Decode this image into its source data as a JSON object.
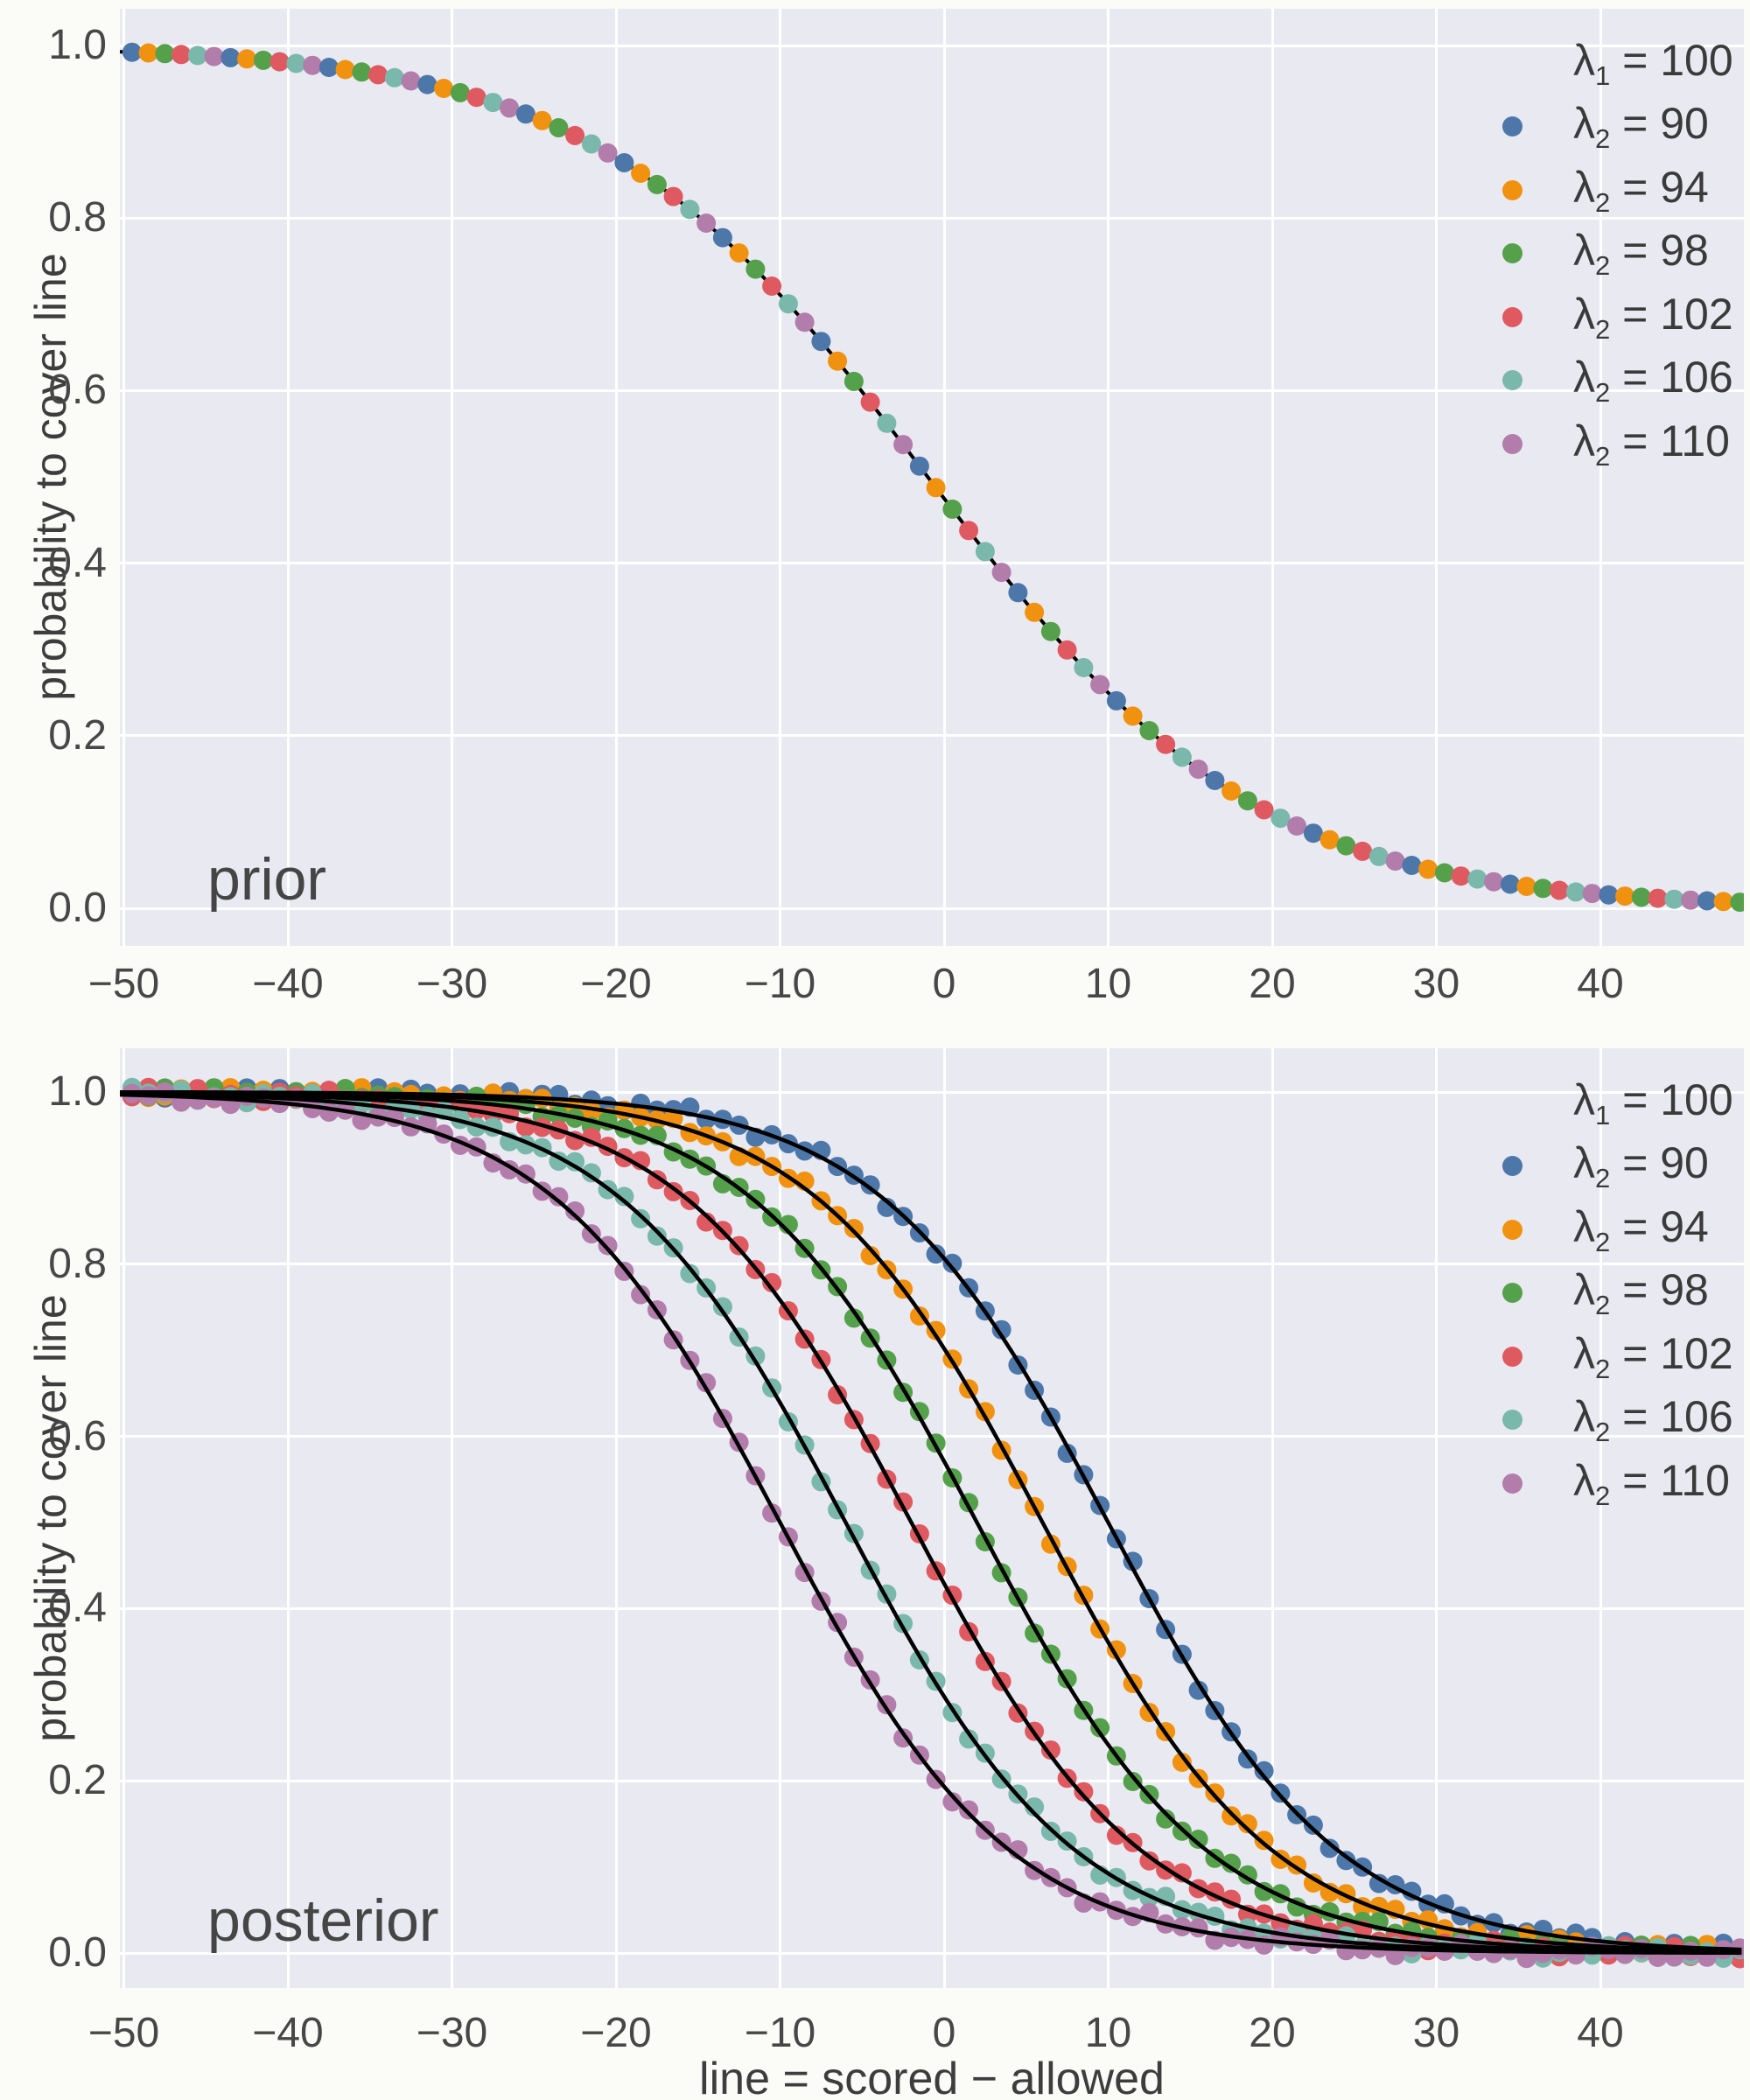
{
  "figure": {
    "background": "#fbfbf8",
    "plot_background": "#e9e9f1",
    "grid_color": "#ffffff",
    "tick_color": "#474747",
    "text_color": "#3d3d3d"
  },
  "palette": {
    "blue": "#4c77a8",
    "orange": "#f0920f",
    "green": "#55a04b",
    "red": "#df5961",
    "teal": "#79b8ab",
    "purple": "#b27cab",
    "fit_line": "#000000"
  },
  "axes": {
    "xlabel": "line = scored − allowed",
    "ylabel": "probability to cover line",
    "xlim": [
      -50.3,
      48.8
    ],
    "ylim": [
      -0.043,
      1.053
    ],
    "x_ticks": [
      {
        "value": -50,
        "label": "−50"
      },
      {
        "value": -40,
        "label": "−40"
      },
      {
        "value": -30,
        "label": "−30"
      },
      {
        "value": -20,
        "label": "−20"
      },
      {
        "value": -10,
        "label": "−10"
      },
      {
        "value": 0,
        "label": "0"
      },
      {
        "value": 10,
        "label": "10"
      },
      {
        "value": 20,
        "label": "20"
      },
      {
        "value": 30,
        "label": "30"
      },
      {
        "value": 40,
        "label": "40"
      }
    ],
    "y_ticks": [
      {
        "value": 0.0,
        "label": "0.0"
      },
      {
        "value": 0.2,
        "label": "0.2"
      },
      {
        "value": 0.4,
        "label": "0.4"
      },
      {
        "value": 0.6,
        "label": "0.6"
      },
      {
        "value": 0.8,
        "label": "0.8"
      },
      {
        "value": 1.0,
        "label": "1.0"
      }
    ]
  },
  "legend": {
    "title": {
      "symbol": "λ",
      "subscript": "1",
      "value": "= 100",
      "color": null
    },
    "entries": [
      {
        "symbol": "λ",
        "subscript": "2",
        "value": "= 90",
        "color": "blue"
      },
      {
        "symbol": "λ",
        "subscript": "2",
        "value": "= 94",
        "color": "orange"
      },
      {
        "symbol": "λ",
        "subscript": "2",
        "value": "= 98",
        "color": "green"
      },
      {
        "symbol": "λ",
        "subscript": "2",
        "value": "= 102",
        "color": "red"
      },
      {
        "symbol": "λ",
        "subscript": "2",
        "value": "= 106",
        "color": "teal"
      },
      {
        "symbol": "λ",
        "subscript": "2",
        "value": "= 110",
        "color": "purple"
      }
    ]
  },
  "chart_data": {
    "type": "scatter",
    "x_points": {
      "start": -49.5,
      "end": 48.5,
      "step": 1
    },
    "marker_color_cycle": [
      "blue",
      "orange",
      "green",
      "red",
      "teal",
      "purple"
    ],
    "panels": [
      {
        "id": "prior",
        "annotation": "prior",
        "description": "single prior cover-probability curve, markers cycle through all lambda2 colors, thin black line",
        "series": [
          {
            "name": "prior",
            "marker_colors": "cycle",
            "line_color": "fit_line",
            "model": {
              "type": "logistic_decreasing",
              "center": -1,
              "scale": 10
            },
            "anchors_x": [
              -50,
              -45,
              -40,
              -35,
              -30,
              -25,
              -20,
              -15,
              -10,
              -5,
              0,
              5,
              10,
              15,
              20,
              25,
              30,
              35,
              40,
              45
            ],
            "anchors_y": [
              0.993,
              0.988,
              0.98,
              0.968,
              0.948,
              0.917,
              0.87,
              0.802,
              0.711,
              0.599,
              0.475,
              0.354,
              0.25,
              0.168,
              0.109,
              0.069,
              0.043,
              0.027,
              0.016,
              0.01
            ]
          }
        ]
      },
      {
        "id": "posterior",
        "annotation": "posterior",
        "description": "six posterior cover-probability curves, one per lambda2, colored markers with black fitted lines",
        "series": [
          {
            "name": "lambda2 = 90",
            "color": "blue",
            "line_color": "fit_line",
            "model": {
              "type": "logistic_decreasing",
              "center": 10,
              "scale": 7
            },
            "anchors_x": [
              -50,
              -40,
              -30,
              -20,
              -10,
              0,
              10,
              20,
              30,
              40
            ],
            "anchors_y": [
              1.0,
              0.999,
              0.997,
              0.986,
              0.946,
              0.807,
              0.5,
              0.193,
              0.054,
              0.014
            ]
          },
          {
            "name": "lambda2 = 94",
            "color": "orange",
            "line_color": "fit_line",
            "model": {
              "type": "logistic_decreasing",
              "center": 6,
              "scale": 7
            },
            "anchors_x": [
              -50,
              -40,
              -30,
              -20,
              -10,
              0,
              10,
              20,
              30,
              40
            ],
            "anchors_y": [
              1.0,
              0.999,
              0.994,
              0.976,
              0.908,
              0.702,
              0.361,
              0.119,
              0.031,
              0.008
            ]
          },
          {
            "name": "lambda2 = 98",
            "color": "green",
            "line_color": "fit_line",
            "model": {
              "type": "logistic_decreasing",
              "center": 2,
              "scale": 7
            },
            "anchors_x": [
              -50,
              -40,
              -30,
              -20,
              -10,
              0,
              10,
              20,
              30,
              40
            ],
            "anchors_y": [
              0.999,
              0.998,
              0.99,
              0.959,
              0.847,
              0.571,
              0.242,
              0.071,
              0.018,
              0.004
            ]
          },
          {
            "name": "lambda2 = 102",
            "color": "red",
            "line_color": "fit_line",
            "model": {
              "type": "logistic_decreasing",
              "center": -2,
              "scale": 7
            },
            "anchors_x": [
              -50,
              -40,
              -30,
              -20,
              -10,
              0,
              10,
              20,
              30,
              40
            ],
            "anchors_y": [
              0.999,
              0.996,
              0.982,
              0.929,
              0.758,
              0.429,
              0.153,
              0.041,
              0.01,
              0.002
            ]
          },
          {
            "name": "lambda2 = 106",
            "color": "teal",
            "line_color": "fit_line",
            "model": {
              "type": "logistic_decreasing",
              "center": -6,
              "scale": 7
            },
            "anchors_x": [
              -50,
              -40,
              -30,
              -20,
              -10,
              0,
              10,
              20,
              30,
              40
            ],
            "anchors_y": [
              0.998,
              0.992,
              0.969,
              0.881,
              0.639,
              0.298,
              0.092,
              0.024,
              0.006,
              0.001
            ]
          },
          {
            "name": "lambda2 = 110",
            "color": "purple",
            "line_color": "fit_line",
            "model": {
              "type": "logistic_decreasing",
              "center": -10,
              "scale": 7
            },
            "anchors_x": [
              -50,
              -40,
              -30,
              -20,
              -10,
              0,
              10,
              20,
              30,
              40
            ],
            "anchors_y": [
              0.997,
              0.986,
              0.946,
              0.807,
              0.5,
              0.193,
              0.054,
              0.014,
              0.003,
              0.001
            ]
          }
        ]
      }
    ]
  }
}
